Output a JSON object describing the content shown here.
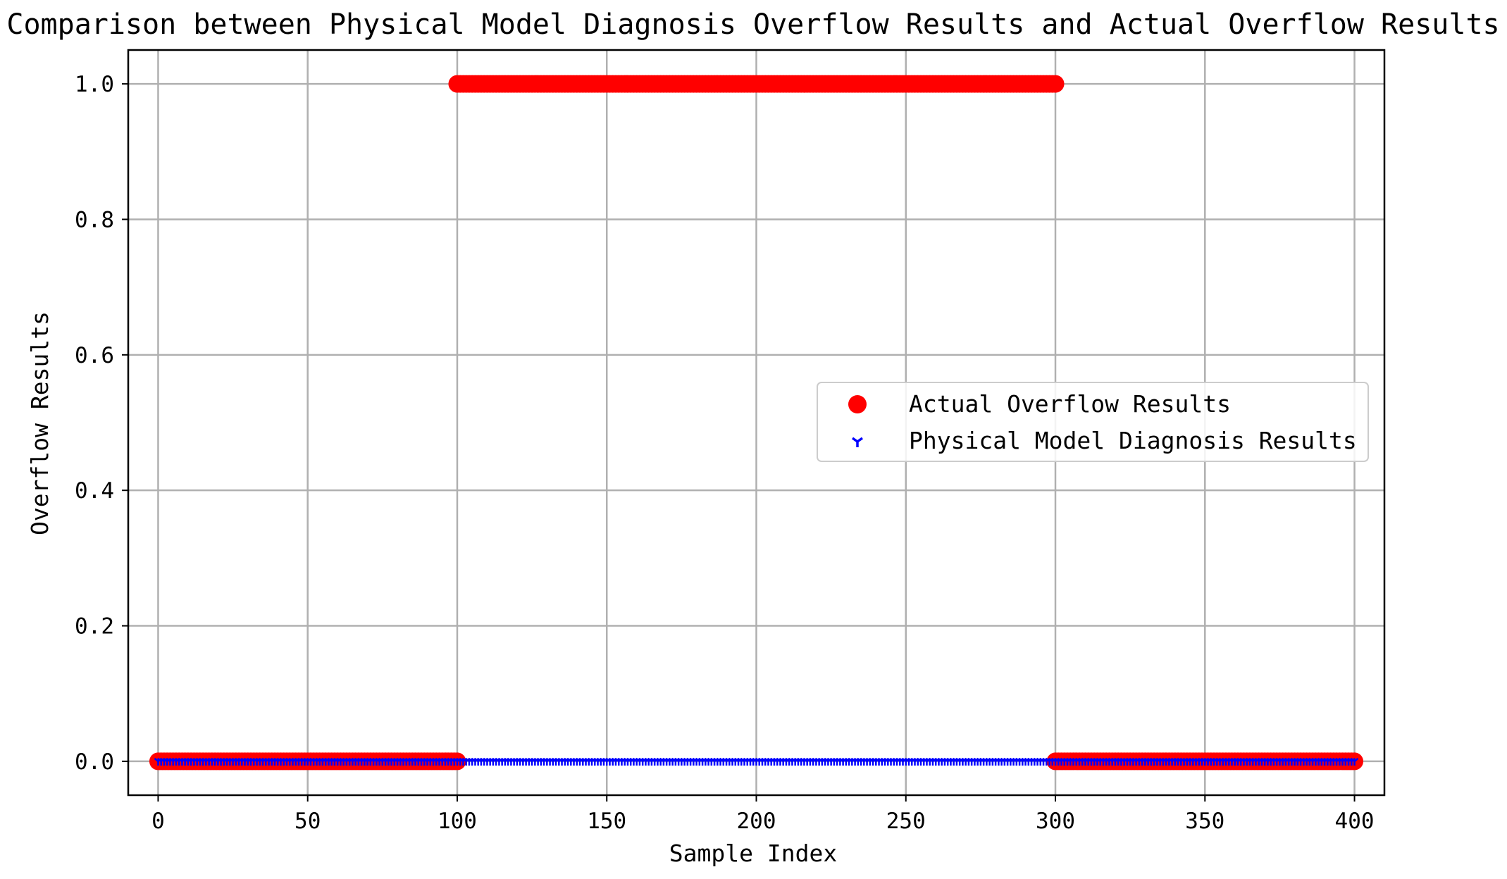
{
  "chart_data": {
    "type": "scatter",
    "title": "Comparison between Physical Model Diagnosis Overflow Results and Actual Overflow Results",
    "xlabel": "Sample Index",
    "ylabel": "Overflow Results",
    "xlim": [
      -10,
      410
    ],
    "ylim": [
      -0.05,
      1.05
    ],
    "xticks": [
      0,
      50,
      100,
      150,
      200,
      250,
      300,
      350,
      400
    ],
    "xtick_labels": [
      "0",
      "50",
      "100",
      "150",
      "200",
      "250",
      "300",
      "350",
      "400"
    ],
    "yticks": [
      0.0,
      0.2,
      0.4,
      0.6,
      0.8,
      1.0
    ],
    "ytick_labels": [
      "0.0",
      "0.2",
      "0.4",
      "0.6",
      "0.8",
      "1.0"
    ],
    "grid": true,
    "legend_position": "center-right",
    "series": [
      {
        "name": "Actual Overflow Results",
        "color": "#ff0000",
        "marker": "circle",
        "segments": [
          {
            "x_start": 0,
            "x_end": 100,
            "y": 0
          },
          {
            "x_start": 100,
            "x_end": 300,
            "y": 1
          },
          {
            "x_start": 300,
            "x_end": 400,
            "y": 0
          }
        ]
      },
      {
        "name": "Physical Model Diagnosis Results",
        "color": "#0000ff",
        "marker": "tri-down",
        "segments": [
          {
            "x_start": 0,
            "x_end": 400,
            "y": 0
          }
        ]
      }
    ]
  }
}
